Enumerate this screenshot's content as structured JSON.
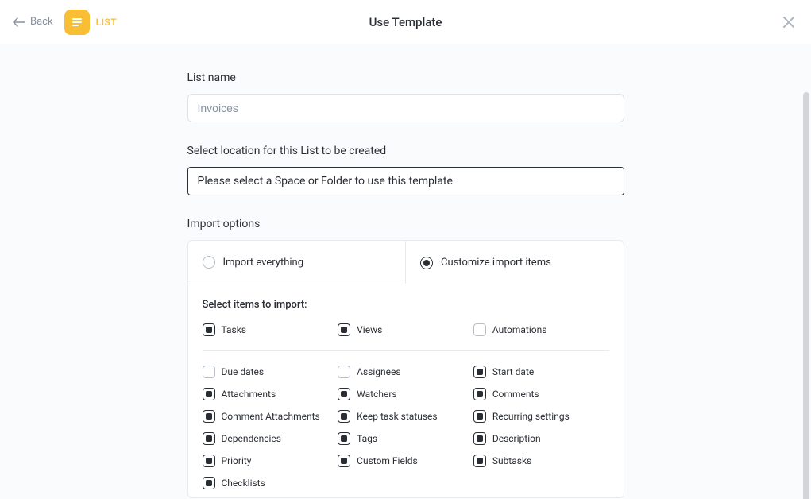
{
  "header": {
    "back_label": "Back",
    "list_tag": "LIST",
    "title": "Use Template"
  },
  "form": {
    "list_name_label": "List name",
    "list_name_placeholder": "Invoices",
    "location_label": "Select location for this List to be created",
    "location_placeholder": "Please select a Space or Folder to use this template",
    "import_options_label": "Import options",
    "radio_everything": "Import everything",
    "radio_customize": "Customize import items",
    "select_items_label": "Select items to import:"
  },
  "top_checks": [
    {
      "label": "Tasks",
      "checked": true
    },
    {
      "label": "Views",
      "checked": true
    },
    {
      "label": "Automations",
      "checked": false
    }
  ],
  "grid_checks": [
    {
      "label": "Due dates",
      "checked": false
    },
    {
      "label": "Assignees",
      "checked": false
    },
    {
      "label": "Start date",
      "checked": true
    },
    {
      "label": "Attachments",
      "checked": true
    },
    {
      "label": "Watchers",
      "checked": true
    },
    {
      "label": "Comments",
      "checked": true
    },
    {
      "label": "Comment Attachments",
      "checked": true
    },
    {
      "label": "Keep task statuses",
      "checked": true
    },
    {
      "label": "Recurring settings",
      "checked": true
    },
    {
      "label": "Dependencies",
      "checked": true
    },
    {
      "label": "Tags",
      "checked": true
    },
    {
      "label": "Description",
      "checked": true
    },
    {
      "label": "Priority",
      "checked": true
    },
    {
      "label": "Custom Fields",
      "checked": true
    },
    {
      "label": "Subtasks",
      "checked": true
    },
    {
      "label": "Checklists",
      "checked": true
    }
  ],
  "colors": {
    "accent": "#f9be33",
    "text": "#2a2e34",
    "muted": "#87909e",
    "border_light": "#e8eaed",
    "input_border": "#e0e2e6",
    "body_bg": "#fafbfc",
    "scrollbar": "#d3d5d9"
  }
}
